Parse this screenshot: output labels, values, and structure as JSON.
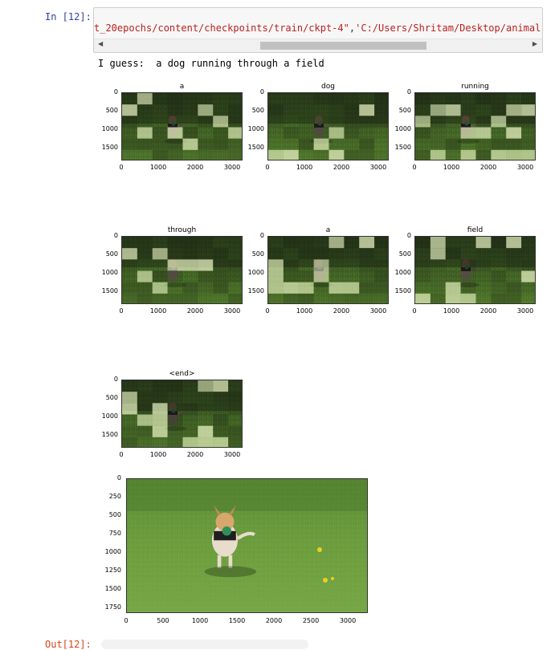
{
  "cell_in": {
    "prompt": "In [12]:",
    "code_str1": "t_20epochs/content/checkpoints/train/ckpt-4\"",
    "code_sep": ",",
    "code_str2": "'C:/Users/Shritam/Desktop/animal-ani"
  },
  "output_text": "I guess:  a dog running through a field",
  "subplots": [
    {
      "title": "a"
    },
    {
      "title": "dog"
    },
    {
      "title": "running"
    },
    {
      "title": "through"
    },
    {
      "title": "a"
    },
    {
      "title": "field"
    },
    {
      "title": "<end>"
    }
  ],
  "subplot_axes": {
    "yticks": [
      "0",
      "500",
      "1000",
      "1500"
    ],
    "xticks": [
      "0",
      "1000",
      "2000",
      "3000"
    ]
  },
  "final_image_axes": {
    "yticks": [
      "0",
      "250",
      "500",
      "750",
      "1000",
      "1250",
      "1500",
      "1750"
    ],
    "xticks": [
      "0",
      "500",
      "1000",
      "1500",
      "2000",
      "2500",
      "3000"
    ]
  },
  "cell_out": {
    "prompt": "Out[12]:"
  },
  "colors": {
    "prompt_in": "#303f9f",
    "prompt_out": "#d84315",
    "string": "#ba2121",
    "grass": "#4f7a2a"
  }
}
